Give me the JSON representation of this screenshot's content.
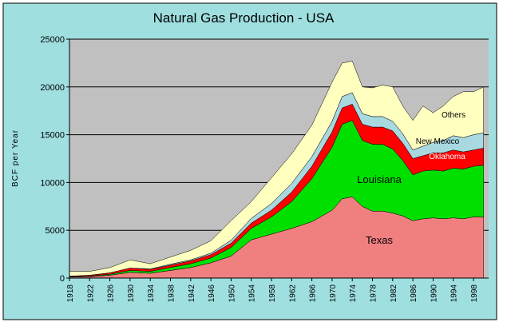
{
  "chart_data": {
    "type": "stacked-area",
    "title": "Natural Gas Production - USA",
    "y_label": "BCF per Year",
    "x": [
      1918,
      1922,
      1926,
      1930,
      1934,
      1938,
      1942,
      1946,
      1950,
      1954,
      1958,
      1962,
      1966,
      1970,
      1972,
      1974,
      1976,
      1978,
      1980,
      1982,
      1984,
      1986,
      1988,
      1990,
      1992,
      1994,
      1996,
      1998,
      2000
    ],
    "series": [
      {
        "name": "Texas",
        "color": "#f08080",
        "values": [
          100,
          150,
          300,
          600,
          500,
          800,
          1100,
          1600,
          2300,
          4000,
          4600,
          5200,
          5900,
          7100,
          8300,
          8500,
          7500,
          7000,
          7000,
          6800,
          6500,
          6000,
          6200,
          6300,
          6200,
          6300,
          6200,
          6400,
          6400
        ]
      },
      {
        "name": "Louisiana",
        "color": "#00e000",
        "values": [
          50,
          50,
          100,
          200,
          200,
          300,
          400,
          500,
          900,
          1200,
          1800,
          2800,
          4500,
          6600,
          7800,
          8000,
          6900,
          7000,
          7000,
          6700,
          5800,
          4800,
          5000,
          5000,
          5000,
          5200,
          5200,
          5300,
          5400
        ]
      },
      {
        "name": "Oklahoma",
        "color": "#ff0000",
        "values": [
          50,
          100,
          150,
          250,
          200,
          250,
          300,
          350,
          450,
          550,
          700,
          1000,
          1300,
          1600,
          1700,
          1700,
          1700,
          1800,
          1800,
          1900,
          1800,
          1700,
          1600,
          1800,
          1900,
          1900,
          1800,
          1700,
          1800
        ]
      },
      {
        "name": "New Mexico",
        "color": "#a8d8e0",
        "values": [
          0,
          0,
          0,
          0,
          50,
          100,
          100,
          150,
          300,
          500,
          700,
          900,
          1000,
          1100,
          1200,
          1200,
          1100,
          1100,
          1100,
          1000,
          1000,
          900,
          1000,
          1100,
          1300,
          1500,
          1500,
          1600,
          1600
        ]
      },
      {
        "name": "Others",
        "color": "#ffffc0",
        "values": [
          500,
          400,
          550,
          850,
          550,
          750,
          1000,
          1300,
          2050,
          1750,
          2700,
          3100,
          3300,
          4100,
          3500,
          3300,
          2800,
          3000,
          3300,
          3600,
          2900,
          3100,
          4200,
          3100,
          3600,
          4100,
          4800,
          4500,
          4800
        ]
      }
    ],
    "xlim": [
      1918,
      2001
    ],
    "xticks": [
      1918,
      1922,
      1926,
      1930,
      1934,
      1938,
      1942,
      1946,
      1950,
      1954,
      1958,
      1962,
      1966,
      1970,
      1974,
      1978,
      1982,
      1986,
      1990,
      1994,
      1998
    ],
    "ylim": [
      0,
      25000
    ],
    "yticks": [
      0,
      5000,
      10000,
      15000,
      20000,
      25000
    ],
    "grid": true
  }
}
